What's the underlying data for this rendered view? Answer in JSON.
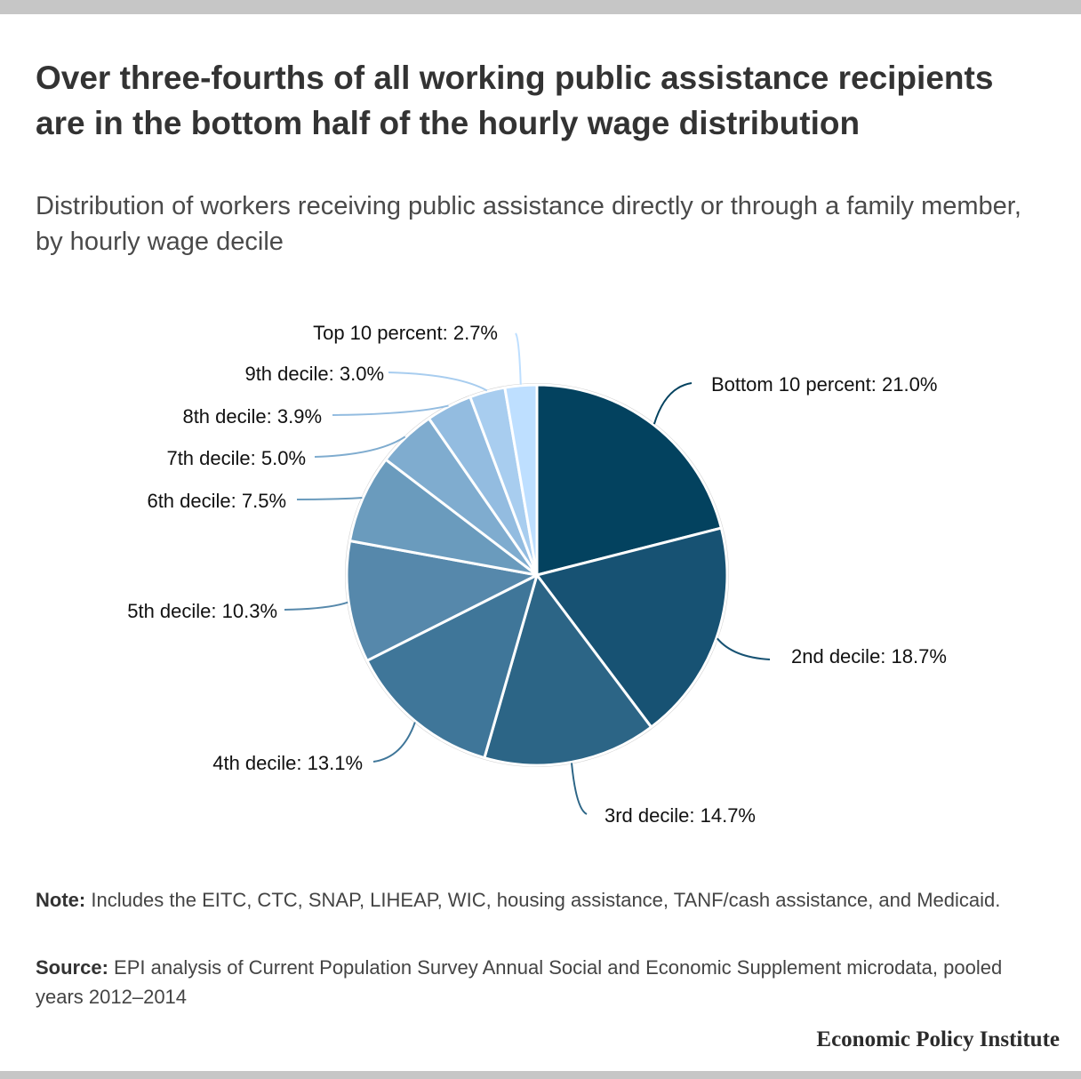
{
  "title": "Over three-fourths of all working public assistance recipients are in the bottom half of the hourly wage distribution",
  "subtitle": "Distribution of workers receiving public assistance directly or through a family member, by hourly wage decile",
  "chart_data": {
    "type": "pie",
    "start_angle": "12 o'clock, clockwise",
    "slices": [
      {
        "label": "Bottom 10 percent: 21.0%",
        "value": 21.0,
        "color": "#03425f"
      },
      {
        "label": "2nd decile: 18.7%",
        "value": 18.7,
        "color": "#175273"
      },
      {
        "label": "3rd decile: 14.7%",
        "value": 14.7,
        "color": "#2c6586"
      },
      {
        "label": "4th decile: 13.1%",
        "value": 13.1,
        "color": "#3f7699"
      },
      {
        "label": "5th decile: 10.3%",
        "value": 10.3,
        "color": "#5688ab"
      },
      {
        "label": "6th decile: 7.5%",
        "value": 7.5,
        "color": "#6a9bbd"
      },
      {
        "label": "7th decile: 5.0%",
        "value": 5.0,
        "color": "#7faccf"
      },
      {
        "label": "8th decile: 3.9%",
        "value": 3.9,
        "color": "#93bce0"
      },
      {
        "label": "9th decile: 3.0%",
        "value": 3.0,
        "color": "#a8cdef"
      },
      {
        "label": "Top 10 percent: 2.7%",
        "value": 2.7,
        "color": "#bedfff"
      }
    ]
  },
  "note": {
    "label": "Note:",
    "text": "Includes the EITC, CTC, SNAP, LIHEAP, WIC, housing assistance, TANF/cash assistance, and Medicaid."
  },
  "source": {
    "label": "Source:",
    "text": "EPI analysis of Current Population Survey Annual Social and Economic Supplement microdata, pooled years 2012–2014"
  },
  "brand": "Economic Policy Institute"
}
